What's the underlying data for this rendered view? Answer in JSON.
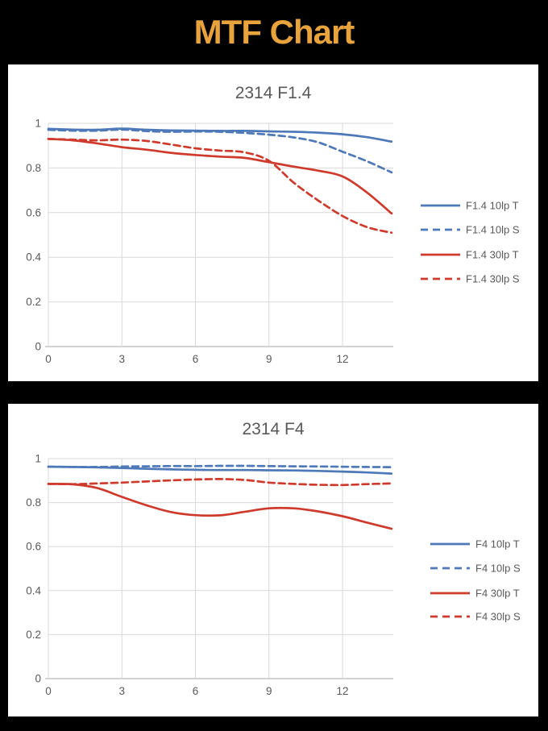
{
  "page": {
    "title": "MTF Chart",
    "title_color": "#E8A33C",
    "background": "#000000"
  },
  "colors": {
    "blue": "#4E79B8",
    "red": "#CE3B2D",
    "grid": "#D9D9D9",
    "axis": "#A6A6A6",
    "text": "#595959",
    "panel": "#FFFFFF"
  },
  "chart_data": [
    {
      "type": "line",
      "title": "2314 F1.4",
      "xlabel": "",
      "ylabel": "",
      "xlim": [
        0,
        14
      ],
      "ylim": [
        0,
        1
      ],
      "grid": true,
      "legend_position": "right",
      "xticks": {
        "values": [
          0,
          3,
          6,
          9,
          12
        ],
        "labels": [
          "0",
          "3",
          "6",
          "9",
          "12"
        ]
      },
      "yticks": {
        "values": [
          1,
          0.8,
          0.6,
          0.4,
          0.2,
          0
        ],
        "labels": [
          "1",
          "0.8",
          "0.6",
          "0.4",
          "0.2",
          "0"
        ]
      },
      "x": [
        0,
        1,
        2,
        3,
        4,
        5,
        6,
        7,
        8,
        9,
        10,
        11,
        12,
        13,
        14
      ],
      "series": [
        {
          "name": "F1.4 10lp T",
          "color": "blue",
          "style": "solid",
          "values": [
            0.975,
            0.972,
            0.971,
            0.976,
            0.971,
            0.968,
            0.967,
            0.966,
            0.966,
            0.964,
            0.962,
            0.958,
            0.951,
            0.938,
            0.918
          ]
        },
        {
          "name": "F1.4 10lp S",
          "color": "blue",
          "style": "dashed",
          "values": [
            0.971,
            0.967,
            0.967,
            0.972,
            0.965,
            0.962,
            0.963,
            0.962,
            0.957,
            0.949,
            0.937,
            0.915,
            0.873,
            0.83,
            0.78
          ]
        },
        {
          "name": "F1.4 30lp T",
          "color": "red",
          "style": "solid",
          "values": [
            0.93,
            0.924,
            0.91,
            0.893,
            0.882,
            0.868,
            0.858,
            0.851,
            0.845,
            0.826,
            0.806,
            0.788,
            0.762,
            0.69,
            0.596
          ]
        },
        {
          "name": "F1.4 30lp S",
          "color": "red",
          "style": "dashed",
          "values": [
            0.93,
            0.927,
            0.924,
            0.927,
            0.921,
            0.905,
            0.888,
            0.878,
            0.87,
            0.832,
            0.735,
            0.655,
            0.585,
            0.535,
            0.51
          ]
        }
      ]
    },
    {
      "type": "line",
      "title": "2314 F4",
      "xlabel": "",
      "ylabel": "",
      "xlim": [
        0,
        14
      ],
      "ylim": [
        0,
        1
      ],
      "grid": true,
      "legend_position": "right",
      "xticks": {
        "values": [
          0,
          3,
          6,
          9,
          12
        ],
        "labels": [
          "0",
          "3",
          "6",
          "9",
          "12"
        ]
      },
      "yticks": {
        "values": [
          1,
          0.8,
          0.6,
          0.4,
          0.2,
          0
        ],
        "labels": [
          "1",
          "0.8",
          "0.6",
          "0.4",
          "0.2",
          "0"
        ]
      },
      "x": [
        0,
        1,
        2,
        3,
        4,
        5,
        6,
        7,
        8,
        9,
        10,
        11,
        12,
        13,
        14
      ],
      "series": [
        {
          "name": "F4 10lp T",
          "color": "blue",
          "style": "solid",
          "values": [
            0.963,
            0.962,
            0.96,
            0.957,
            0.954,
            0.951,
            0.949,
            0.948,
            0.948,
            0.947,
            0.946,
            0.944,
            0.941,
            0.937,
            0.932
          ]
        },
        {
          "name": "F4 10lp S",
          "color": "blue",
          "style": "dashed",
          "values": [
            0.963,
            0.962,
            0.962,
            0.964,
            0.965,
            0.966,
            0.966,
            0.967,
            0.967,
            0.966,
            0.965,
            0.964,
            0.963,
            0.962,
            0.961
          ]
        },
        {
          "name": "F4 30lp T",
          "color": "red",
          "style": "solid",
          "values": [
            0.885,
            0.883,
            0.866,
            0.826,
            0.788,
            0.757,
            0.743,
            0.742,
            0.758,
            0.774,
            0.774,
            0.76,
            0.738,
            0.709,
            0.681
          ]
        },
        {
          "name": "F4 30lp S",
          "color": "red",
          "style": "dashed",
          "values": [
            0.885,
            0.884,
            0.887,
            0.891,
            0.896,
            0.901,
            0.905,
            0.907,
            0.903,
            0.891,
            0.885,
            0.881,
            0.88,
            0.884,
            0.887
          ]
        }
      ]
    }
  ]
}
